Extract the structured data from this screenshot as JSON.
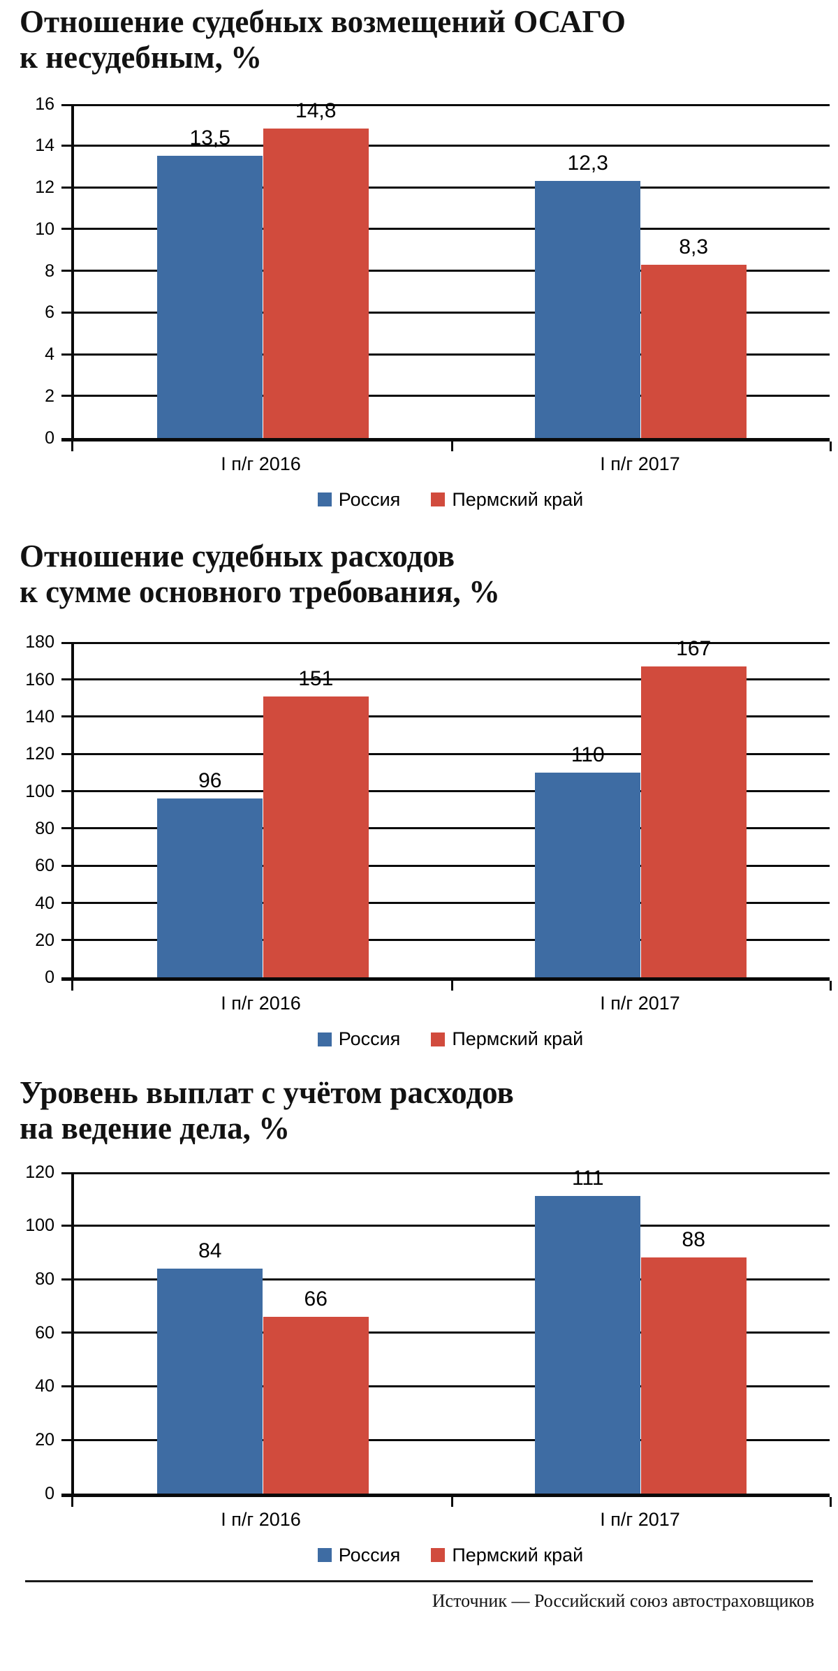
{
  "source_note": "Источник — Российский союз автостраховщиков",
  "colors": {
    "rossiya_blue": "#3E6CA3",
    "permskiy_red": "#D14B3D",
    "grid_black": "#0a0a0a"
  },
  "chart_data": [
    {
      "type": "bar",
      "title_lines": [
        "Отношение судебных возмещений ОСАГО",
        "к несудебным, %"
      ],
      "categories": [
        "I п/г 2016",
        "I п/г 2017"
      ],
      "series": [
        {
          "name": "Россия",
          "color": "#3E6CA3",
          "values": [
            13.5,
            12.3
          ],
          "labels": [
            "13,5",
            "12,3"
          ]
        },
        {
          "name": "Пермский край",
          "color": "#D14B3D",
          "values": [
            14.8,
            8.3
          ],
          "labels": [
            "14,8",
            "8,3"
          ]
        }
      ],
      "ylim": [
        0,
        16
      ],
      "ytick_step": 2,
      "grid": true,
      "legend_position": "bottom"
    },
    {
      "type": "bar",
      "title_lines": [
        "Отношение судебных расходов",
        "к сумме основного требования, %"
      ],
      "categories": [
        "I п/г 2016",
        "I п/г 2017"
      ],
      "series": [
        {
          "name": "Россия",
          "color": "#3E6CA3",
          "values": [
            96,
            110
          ],
          "labels": [
            "96",
            "110"
          ]
        },
        {
          "name": "Пермский край",
          "color": "#D14B3D",
          "values": [
            151,
            167
          ],
          "labels": [
            "151",
            "167"
          ]
        }
      ],
      "ylim": [
        0,
        180
      ],
      "ytick_step": 20,
      "grid": true,
      "legend_position": "bottom"
    },
    {
      "type": "bar",
      "title_lines": [
        "Уровень выплат с учётом расходов",
        "на ведение дела, %"
      ],
      "categories": [
        "I п/г 2016",
        "I п/г 2017"
      ],
      "series": [
        {
          "name": "Россия",
          "color": "#3E6CA3",
          "values": [
            84,
            111
          ],
          "labels": [
            "84",
            "111"
          ]
        },
        {
          "name": "Пермский край",
          "color": "#D14B3D",
          "values": [
            66,
            88
          ],
          "labels": [
            "66",
            "88"
          ]
        }
      ],
      "ylim": [
        0,
        120
      ],
      "ytick_step": 20,
      "grid": true,
      "legend_position": "bottom"
    }
  ]
}
